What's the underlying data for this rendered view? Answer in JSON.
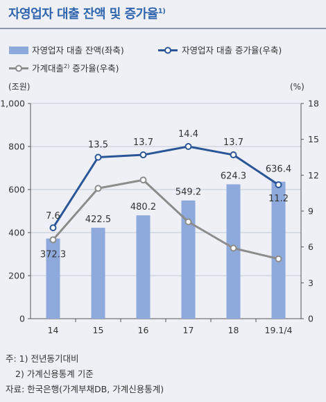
{
  "title": {
    "text": "자영업자 대출 잔액 및 증가율",
    "sup": "1)"
  },
  "chart_data": {
    "type": "bar",
    "categories": [
      "14",
      "15",
      "16",
      "17",
      "18",
      "19.1/4"
    ],
    "series": [
      {
        "name": "자영업자 대출 잔액(좌축)",
        "type": "bar",
        "axis": "left",
        "color": "#8ea9db",
        "values": [
          372.3,
          422.5,
          480.2,
          549.2,
          624.3,
          636.4
        ]
      },
      {
        "name": "자영업자 대출 증가율(우축)",
        "type": "line",
        "axis": "right",
        "color": "#2a5597",
        "values": [
          7.6,
          13.5,
          13.7,
          14.4,
          13.7,
          11.2
        ]
      },
      {
        "name": "가계대출",
        "name_sup": "2)",
        "name_suffix": " 증가율(우축)",
        "type": "line",
        "axis": "right",
        "color": "#8c8c8c",
        "values": [
          6.6,
          10.9,
          11.6,
          8.1,
          5.9,
          5.0
        ]
      }
    ],
    "left_axis": {
      "unit": "(조원)",
      "ylim": [
        0,
        1000
      ],
      "ticks": [
        "0",
        "200",
        "400",
        "600",
        "800",
        "1,000"
      ]
    },
    "right_axis": {
      "unit": "(%)",
      "ylim": [
        0,
        18
      ],
      "ticks": [
        "0",
        "3",
        "6",
        "9",
        "12",
        "15",
        "18"
      ]
    },
    "data_labels": {
      "bars": [
        "372.3",
        "422.5",
        "480.2",
        "549.2",
        "624.3",
        "636.4"
      ],
      "line": [
        "7.6",
        "13.5",
        "13.7",
        "14.4",
        "13.7",
        "11.2"
      ]
    },
    "legend_position": "top"
  },
  "notes": {
    "line1": "주: 1) 전년동기대비",
    "line2": "2) 가계신용통계 기준",
    "line3": "자료: 한국은행(가계부채DB, 가계신용통계)"
  }
}
